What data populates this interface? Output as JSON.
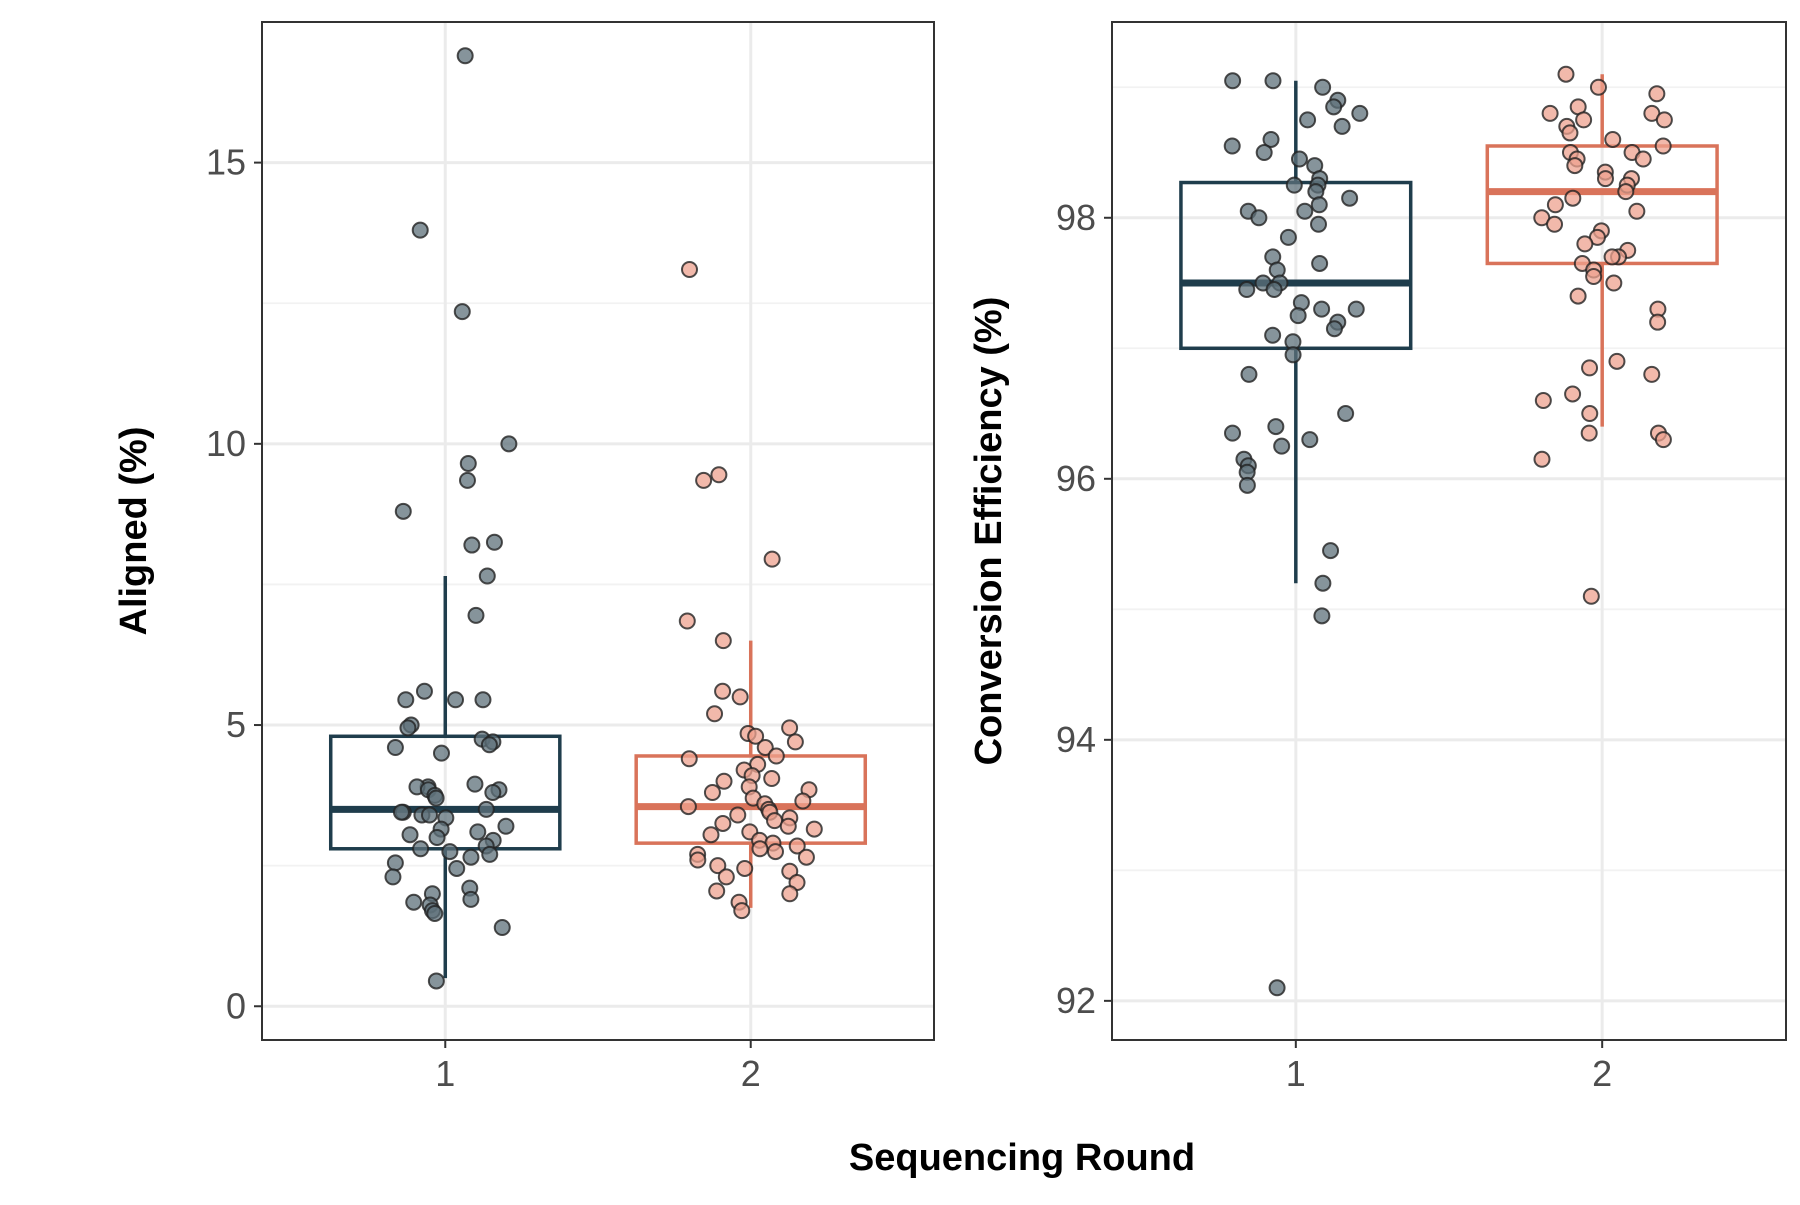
{
  "figure": {
    "shared_xlabel": "Sequencing Round"
  },
  "colors": {
    "round1": "#1f3d4c",
    "round2": "#d9735a",
    "point_fill_1": "#5e7079",
    "point_fill_2": "#eea28f",
    "point_stroke": "#222222"
  },
  "chart_data": [
    {
      "type": "box",
      "title": "",
      "xlabel": "Sequencing Round",
      "ylabel": "Aligned (%)",
      "categories": [
        "1",
        "2"
      ],
      "ylim": [
        -0.6,
        17.5
      ],
      "yticks": [
        0,
        5,
        10,
        15
      ],
      "grid": true,
      "boxes": [
        {
          "category": "1",
          "whisker_low": 0.5,
          "q1": 2.8,
          "median": 3.5,
          "q3": 4.8,
          "whisker_high": 7.65
        },
        {
          "category": "2",
          "whisker_low": 1.75,
          "q1": 2.9,
          "median": 3.55,
          "q3": 4.45,
          "whisker_high": 6.5
        }
      ],
      "points": [
        {
          "category": "1",
          "values": [
            16.9,
            13.8,
            12.35,
            10.0,
            9.65,
            9.35,
            8.8,
            8.25,
            8.2,
            7.65,
            6.95,
            5.6,
            5.45,
            5.45,
            5.45,
            5.0,
            4.95,
            4.75,
            4.7,
            4.65,
            4.6,
            4.5,
            3.95,
            3.9,
            3.9,
            3.85,
            3.85,
            3.8,
            3.75,
            3.7,
            3.5,
            3.45,
            3.45,
            3.4,
            3.4,
            3.35,
            3.2,
            3.15,
            3.1,
            3.05,
            3.0,
            2.95,
            2.85,
            2.8,
            2.75,
            2.7,
            2.65,
            2.55,
            2.45,
            2.3,
            2.1,
            2.0,
            1.9,
            1.85,
            1.8,
            1.7,
            1.65,
            1.4,
            0.45
          ]
        },
        {
          "category": "2",
          "values": [
            13.1,
            9.45,
            9.35,
            7.95,
            6.85,
            6.5,
            5.6,
            5.5,
            5.2,
            4.95,
            4.85,
            4.8,
            4.7,
            4.6,
            4.45,
            4.4,
            4.3,
            4.2,
            4.1,
            4.05,
            4.0,
            3.9,
            3.85,
            3.8,
            3.7,
            3.65,
            3.6,
            3.55,
            3.5,
            3.45,
            3.4,
            3.35,
            3.3,
            3.25,
            3.2,
            3.15,
            3.1,
            3.05,
            2.95,
            2.9,
            2.85,
            2.8,
            2.75,
            2.7,
            2.65,
            2.6,
            2.5,
            2.45,
            2.4,
            2.3,
            2.2,
            2.05,
            2.0,
            1.85,
            1.7
          ]
        }
      ]
    },
    {
      "type": "box",
      "title": "",
      "xlabel": "Sequencing Round",
      "ylabel": "Conversion Efficiency (%)",
      "categories": [
        "1",
        "2"
      ],
      "ylim": [
        91.7,
        99.5
      ],
      "yticks": [
        92,
        94,
        96,
        98
      ],
      "grid": true,
      "boxes": [
        {
          "category": "1",
          "whisker_low": 95.2,
          "q1": 97.0,
          "median": 97.5,
          "q3": 98.27,
          "whisker_high": 99.05
        },
        {
          "category": "2",
          "whisker_low": 96.4,
          "q1": 97.65,
          "median": 98.2,
          "q3": 98.55,
          "whisker_high": 99.1
        }
      ],
      "points": [
        {
          "category": "1",
          "values": [
            99.05,
            99.05,
            99.0,
            98.9,
            98.85,
            98.8,
            98.75,
            98.7,
            98.6,
            98.55,
            98.5,
            98.45,
            98.4,
            98.3,
            98.25,
            98.25,
            98.2,
            98.15,
            98.1,
            98.05,
            98.05,
            98.0,
            97.95,
            97.85,
            97.7,
            97.65,
            97.6,
            97.5,
            97.5,
            97.45,
            97.45,
            97.35,
            97.3,
            97.3,
            97.25,
            97.2,
            97.15,
            97.1,
            97.05,
            96.95,
            96.8,
            96.5,
            96.4,
            96.35,
            96.3,
            96.25,
            96.15,
            96.1,
            96.05,
            95.95,
            95.45,
            95.2,
            94.95,
            92.1
          ]
        },
        {
          "category": "2",
          "values": [
            99.1,
            99.0,
            98.95,
            98.85,
            98.8,
            98.8,
            98.75,
            98.75,
            98.7,
            98.65,
            98.6,
            98.55,
            98.5,
            98.5,
            98.45,
            98.45,
            98.4,
            98.35,
            98.3,
            98.3,
            98.25,
            98.2,
            98.15,
            98.1,
            98.05,
            98.0,
            97.95,
            97.9,
            97.85,
            97.8,
            97.75,
            97.7,
            97.7,
            97.65,
            97.6,
            97.55,
            97.5,
            97.4,
            97.3,
            97.2,
            96.9,
            96.85,
            96.8,
            96.65,
            96.6,
            96.5,
            96.35,
            96.35,
            96.3,
            96.15,
            95.1
          ]
        }
      ]
    }
  ]
}
